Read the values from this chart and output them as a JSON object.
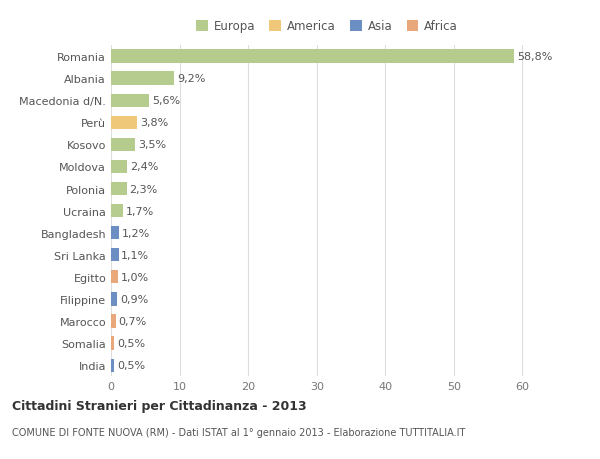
{
  "countries": [
    "Romania",
    "Albania",
    "Macedonia d/N.",
    "Perù",
    "Kosovo",
    "Moldova",
    "Polonia",
    "Ucraina",
    "Bangladesh",
    "Sri Lanka",
    "Egitto",
    "Filippine",
    "Marocco",
    "Somalia",
    "India"
  ],
  "values": [
    58.8,
    9.2,
    5.6,
    3.8,
    3.5,
    2.4,
    2.3,
    1.7,
    1.2,
    1.1,
    1.0,
    0.9,
    0.7,
    0.5,
    0.5
  ],
  "labels": [
    "58,8%",
    "9,2%",
    "5,6%",
    "3,8%",
    "3,5%",
    "2,4%",
    "2,3%",
    "1,7%",
    "1,2%",
    "1,1%",
    "1,0%",
    "0,9%",
    "0,7%",
    "0,5%",
    "0,5%"
  ],
  "continents": [
    "Europa",
    "Europa",
    "Europa",
    "America",
    "Europa",
    "Europa",
    "Europa",
    "Europa",
    "Asia",
    "Asia",
    "Africa",
    "Asia",
    "Africa",
    "Africa",
    "Asia"
  ],
  "colors": {
    "Europa": "#b5cc8e",
    "America": "#f0c87a",
    "Asia": "#6b8fc2",
    "Africa": "#e8a87c"
  },
  "xlim": [
    0,
    63
  ],
  "xticks": [
    0,
    10,
    20,
    30,
    40,
    50,
    60
  ],
  "title": "Cittadini Stranieri per Cittadinanza - 2013",
  "subtitle": "COMUNE DI FONTE NUOVA (RM) - Dati ISTAT al 1° gennaio 2013 - Elaborazione TUTTITALIA.IT",
  "bg_color": "#ffffff",
  "plot_bg_color": "#ffffff",
  "grid_color": "#dddddd",
  "bar_height": 0.6,
  "label_fontsize": 8,
  "tick_fontsize": 8,
  "legend_order": [
    "Europa",
    "America",
    "Asia",
    "Africa"
  ]
}
